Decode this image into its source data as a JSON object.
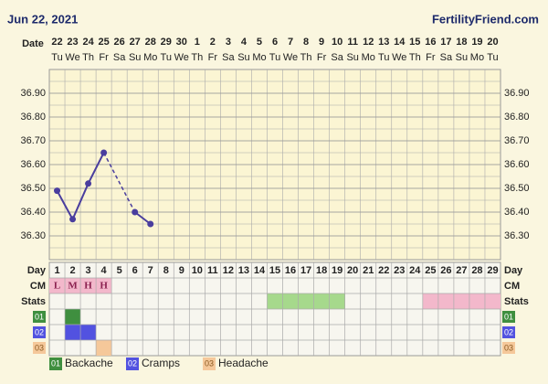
{
  "header": {
    "date": "Jun 22, 2021",
    "site": "FertilityFriend.com"
  },
  "chart_data": {
    "type": "line",
    "date_label": "Date",
    "dates": [
      "22",
      "23",
      "24",
      "25",
      "26",
      "27",
      "28",
      "29",
      "30",
      "1",
      "2",
      "3",
      "4",
      "5",
      "6",
      "7",
      "8",
      "9",
      "10",
      "11",
      "12",
      "13",
      "14",
      "15",
      "16",
      "17",
      "18",
      "19",
      "20"
    ],
    "weekdays": [
      "Tu",
      "We",
      "Th",
      "Fr",
      "Sa",
      "Su",
      "Mo",
      "Tu",
      "We",
      "Th",
      "Fr",
      "Sa",
      "Su",
      "Mo",
      "Tu",
      "We",
      "Th",
      "Fr",
      "Sa",
      "Su",
      "Mo",
      "Tu",
      "We",
      "Th",
      "Fr",
      "Sa",
      "Su",
      "Mo",
      "Tu"
    ],
    "values": [
      36.49,
      36.37,
      36.52,
      36.65,
      null,
      36.4,
      36.35,
      null,
      null,
      null,
      null,
      null,
      null,
      null,
      null,
      null,
      null,
      null,
      null,
      null,
      null,
      null,
      null,
      null,
      null,
      null,
      null,
      null,
      null
    ],
    "color": "#4a3e9e",
    "ylim": [
      36.2,
      37.0
    ],
    "yticks": [
      {
        "value": 36.3,
        "label": "36.30"
      },
      {
        "value": 36.4,
        "label": "36.40"
      },
      {
        "value": 36.5,
        "label": "36.50"
      },
      {
        "value": 36.6,
        "label": "36.60"
      },
      {
        "value": 36.7,
        "label": "36.70"
      },
      {
        "value": 36.8,
        "label": "36.80"
      },
      {
        "value": 36.9,
        "label": "36.90"
      }
    ],
    "grid": true,
    "day_label": "Day",
    "days": [
      1,
      2,
      3,
      4,
      5,
      6,
      7,
      8,
      9,
      10,
      11,
      12,
      13,
      14,
      15,
      16,
      17,
      18,
      19,
      20,
      21,
      22,
      23,
      24,
      25,
      26,
      27,
      28,
      29
    ],
    "cm_label": "CM",
    "cm": [
      "L",
      "M",
      "H",
      "H",
      null,
      null,
      null,
      null,
      null,
      null,
      null,
      null,
      null,
      null,
      null,
      null,
      null,
      null,
      null,
      null,
      null,
      null,
      null,
      null,
      null,
      null,
      null,
      null,
      null
    ],
    "cm_color": "#f3b8cb",
    "stats_label": "Stats",
    "stats_colors": [
      null,
      null,
      null,
      null,
      null,
      null,
      null,
      null,
      null,
      null,
      null,
      null,
      null,
      null,
      "#a6d98c",
      "#a6d98c",
      "#a6d98c",
      "#a6d98c",
      "#a6d98c",
      null,
      null,
      null,
      null,
      null,
      "#f3b8cb",
      "#f3b8cb",
      "#f3b8cb",
      "#f3b8cb",
      "#f3b8cb"
    ],
    "symptoms": [
      {
        "code": "01",
        "name": "Backache",
        "color": "#3f8f3f",
        "days": [
          2
        ]
      },
      {
        "code": "02",
        "name": "Cramps",
        "color": "#5252e0",
        "days": [
          2,
          3
        ]
      },
      {
        "code": "03",
        "name": "Headache",
        "color": "#f5c89a",
        "days": [
          4
        ]
      }
    ]
  }
}
